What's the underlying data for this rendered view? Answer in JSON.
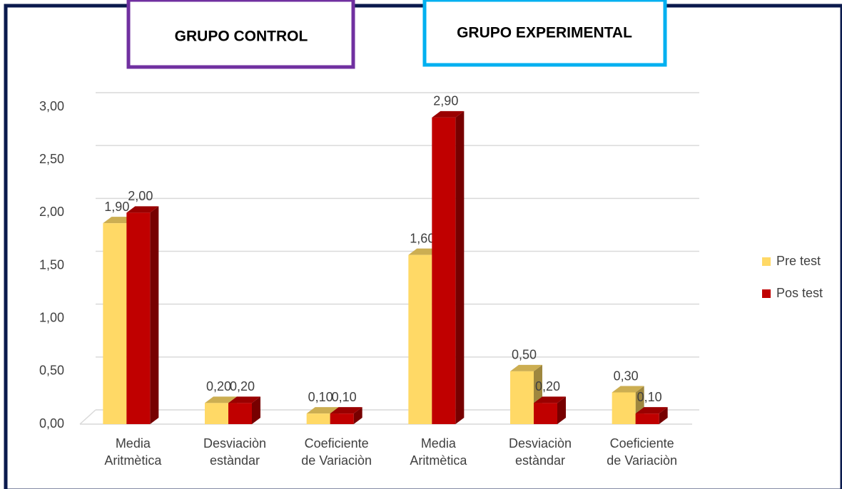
{
  "group_labels": [
    "GRUPO CONTROL",
    "GRUPO EXPERIMENTAL"
  ],
  "chart_data": {
    "type": "bar",
    "categories": [
      "Media\nAritmètica",
      "Desviaciòn\nestàndar",
      "Coeficiente\nde Variaciòn",
      "Media\nAritmètica",
      "Desviaciòn\nestàndar",
      "Coeficiente\nde Variaciòn"
    ],
    "series": [
      {
        "name": "Pre test",
        "color": "#ffd966",
        "values": [
          1.9,
          0.2,
          0.1,
          1.6,
          0.5,
          0.3
        ],
        "value_labels": [
          "1,90",
          "0,20",
          "0,10",
          "1,60",
          "0,50",
          "0,30"
        ]
      },
      {
        "name": "Pos test",
        "color": "#c00000",
        "values": [
          2.0,
          0.2,
          0.1,
          2.9,
          0.2,
          0.1
        ],
        "value_labels": [
          "2,00",
          "0,20",
          "0,10",
          "2,90",
          "0,20",
          "0,10"
        ]
      }
    ],
    "ylim": [
      0,
      3
    ],
    "yticks": [
      {
        "value": 0,
        "label": "0,00"
      },
      {
        "value": 0.5,
        "label": "0,50"
      },
      {
        "value": 1,
        "label": "1,00"
      },
      {
        "value": 1.5,
        "label": "1,50"
      },
      {
        "value": 2,
        "label": "2,00"
      },
      {
        "value": 2.5,
        "label": "2,50"
      },
      {
        "value": 3,
        "label": "3,00"
      }
    ],
    "grid": true,
    "legend": "right"
  }
}
